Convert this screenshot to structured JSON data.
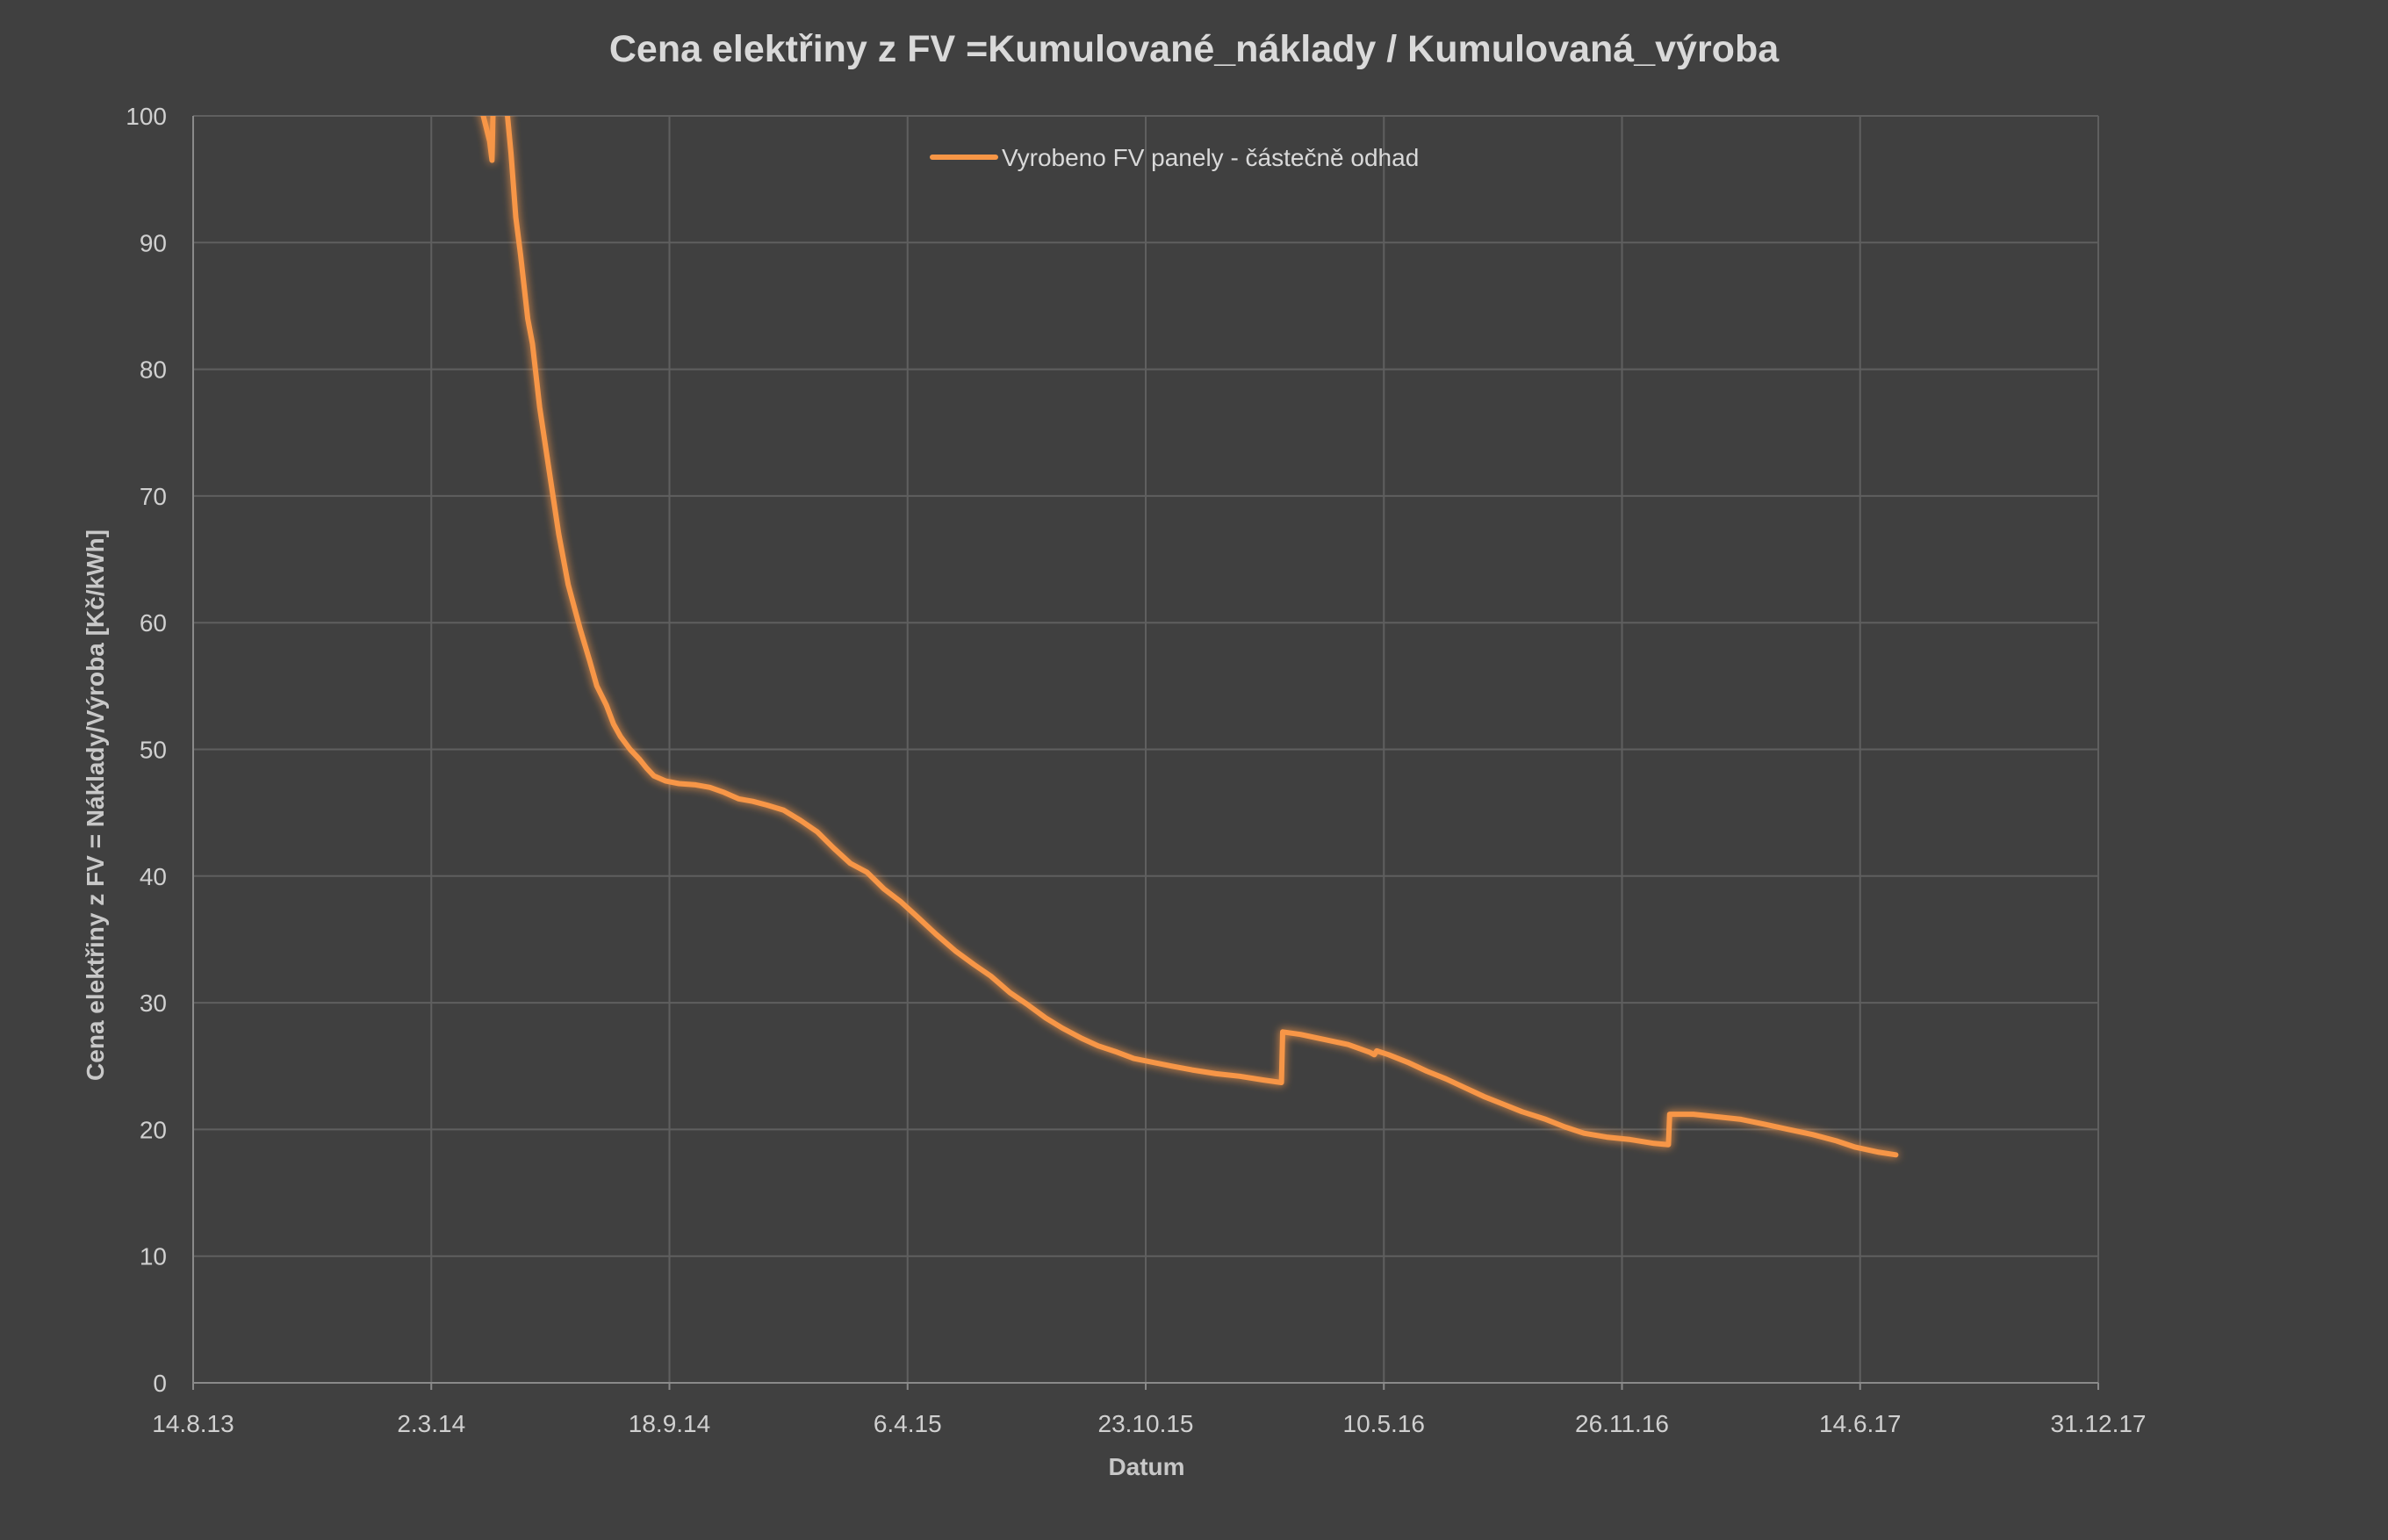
{
  "chart_data": {
    "type": "line",
    "title": "Cena elektřiny z FV =Kumulované_náklady / Kumulovaná_výroba",
    "xlabel": "Datum",
    "ylabel": "Cena elektřiny z FV = Náklady/Výroba [Kč/kWh]",
    "x_axis": {
      "min": "2013-08-14",
      "max": "2017-12-31",
      "tick_labels": [
        "14.8.13",
        "2.3.14",
        "18.9.14",
        "6.4.15",
        "23.10.15",
        "10.5.16",
        "26.11.16",
        "14.6.17",
        "31.12.17"
      ],
      "tick_dates": [
        "2013-08-14",
        "2014-03-02",
        "2014-09-18",
        "2015-04-06",
        "2015-10-23",
        "2016-05-10",
        "2016-11-26",
        "2017-06-14",
        "2017-12-31"
      ]
    },
    "y_axis": {
      "min": 0,
      "max": 100,
      "tick_labels": [
        "0",
        "10",
        "20",
        "30",
        "40",
        "50",
        "60",
        "70",
        "80",
        "90",
        "100"
      ],
      "tick_values": [
        0,
        10,
        20,
        30,
        40,
        50,
        60,
        70,
        80,
        90,
        100
      ]
    },
    "grid": true,
    "legend_position": "top-center",
    "series": [
      {
        "name": "Vyrobeno FV panely - částečně odhad",
        "color": "#f79646",
        "points": [
          [
            "2014-04-12",
            101
          ],
          [
            "2014-04-20",
            98
          ],
          [
            "2014-04-22",
            96.5
          ],
          [
            "2014-04-23",
            101
          ],
          [
            "2014-05-04",
            101
          ],
          [
            "2014-05-08",
            97
          ],
          [
            "2014-05-12",
            92
          ],
          [
            "2014-05-16",
            89
          ],
          [
            "2014-05-22",
            84
          ],
          [
            "2014-05-26",
            82
          ],
          [
            "2014-06-01",
            77
          ],
          [
            "2014-06-09",
            72
          ],
          [
            "2014-06-17",
            67
          ],
          [
            "2014-06-25",
            63
          ],
          [
            "2014-07-05",
            59.5
          ],
          [
            "2014-07-13",
            57
          ],
          [
            "2014-07-19",
            55
          ],
          [
            "2014-07-27",
            53.5
          ],
          [
            "2014-08-02",
            52
          ],
          [
            "2014-08-08",
            51
          ],
          [
            "2014-08-16",
            50
          ],
          [
            "2014-08-24",
            49.2
          ],
          [
            "2014-08-30",
            48.5
          ],
          [
            "2014-09-05",
            47.9
          ],
          [
            "2014-09-15",
            47.5
          ],
          [
            "2014-09-26",
            47.3
          ],
          [
            "2014-10-10",
            47.2
          ],
          [
            "2014-10-22",
            47
          ],
          [
            "2014-11-03",
            46.6
          ],
          [
            "2014-11-15",
            46.1
          ],
          [
            "2014-11-27",
            45.9
          ],
          [
            "2014-12-09",
            45.6
          ],
          [
            "2014-12-23",
            45.2
          ],
          [
            "2015-01-06",
            44.4
          ],
          [
            "2015-01-20",
            43.5
          ],
          [
            "2015-02-03",
            42.2
          ],
          [
            "2015-02-17",
            41
          ],
          [
            "2015-03-03",
            40.3
          ],
          [
            "2015-03-17",
            39
          ],
          [
            "2015-03-31",
            38
          ],
          [
            "2015-04-14",
            36.8
          ],
          [
            "2015-04-30",
            35.4
          ],
          [
            "2015-05-16",
            34.1
          ],
          [
            "2015-06-01",
            33
          ],
          [
            "2015-06-15",
            32.1
          ],
          [
            "2015-07-01",
            30.8
          ],
          [
            "2015-07-15",
            29.9
          ],
          [
            "2015-07-31",
            28.8
          ],
          [
            "2015-08-14",
            28
          ],
          [
            "2015-08-30",
            27.2
          ],
          [
            "2015-09-13",
            26.6
          ],
          [
            "2015-09-29",
            26.1
          ],
          [
            "2015-10-13",
            25.6
          ],
          [
            "2015-10-29",
            25.3
          ],
          [
            "2015-11-14",
            25.0
          ],
          [
            "2015-12-01",
            24.7
          ],
          [
            "2015-12-21",
            24.4
          ],
          [
            "2016-01-10",
            24.2
          ],
          [
            "2016-01-30",
            23.9
          ],
          [
            "2016-02-14",
            23.7
          ],
          [
            "2016-02-15",
            27.7
          ],
          [
            "2016-03-01",
            27.5
          ],
          [
            "2016-03-21",
            27.1
          ],
          [
            "2016-04-10",
            26.7
          ],
          [
            "2016-04-28",
            26.1
          ],
          [
            "2016-05-02",
            25.9
          ],
          [
            "2016-05-04",
            26.2
          ],
          [
            "2016-05-14",
            25.9
          ],
          [
            "2016-05-30",
            25.3
          ],
          [
            "2016-06-15",
            24.6
          ],
          [
            "2016-07-01",
            24.0
          ],
          [
            "2016-07-17",
            23.3
          ],
          [
            "2016-08-02",
            22.6
          ],
          [
            "2016-08-18",
            22.0
          ],
          [
            "2016-09-03",
            21.4
          ],
          [
            "2016-09-23",
            20.8
          ],
          [
            "2016-10-09",
            20.2
          ],
          [
            "2016-10-25",
            19.7
          ],
          [
            "2016-11-13",
            19.4
          ],
          [
            "2016-12-03",
            19.2
          ],
          [
            "2016-12-23",
            18.9
          ],
          [
            "2017-01-04",
            18.8
          ],
          [
            "2017-01-05",
            21.2
          ],
          [
            "2017-01-25",
            21.2
          ],
          [
            "2017-02-14",
            21.0
          ],
          [
            "2017-03-06",
            20.8
          ],
          [
            "2017-03-26",
            20.4
          ],
          [
            "2017-04-15",
            20.0
          ],
          [
            "2017-05-05",
            19.6
          ],
          [
            "2017-05-25",
            19.1
          ],
          [
            "2017-06-10",
            18.6
          ],
          [
            "2017-06-30",
            18.2
          ],
          [
            "2017-07-14",
            18.0
          ]
        ]
      }
    ]
  }
}
